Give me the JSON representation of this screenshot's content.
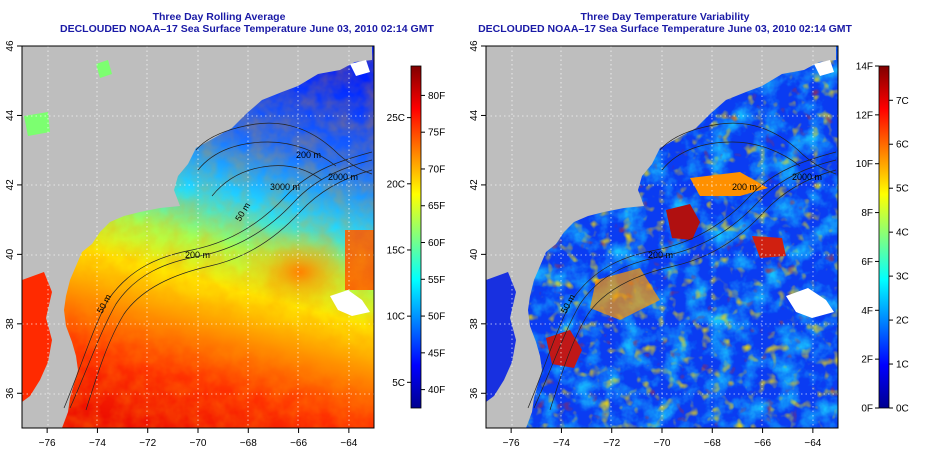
{
  "panels": [
    {
      "title1": "Three Day Rolling Average",
      "title2": "DECLOUDED NOAA–17 Sea Surface Temperature June 03, 2010 02:14 GMT",
      "colorbar_right": [
        "80F",
        "75F",
        "70F",
        "65F",
        "60F",
        "55F",
        "50F",
        "45F",
        "40F"
      ],
      "colorbar_left": [
        "25C",
        "20C",
        "15C",
        "10C",
        "5C"
      ],
      "contour_labels": [
        "200 m",
        "2000 m",
        "3000 m",
        "50 m",
        "200 m",
        "50 m"
      ]
    },
    {
      "title1": "Three Day Temperature Variability",
      "title2": "DECLOUDED NOAA–17 Sea Surface Temperature June 03, 2010 02:14 GMT",
      "colorbar_left": [
        "14F",
        "12F",
        "10F",
        "8F",
        "6F",
        "4F",
        "2F",
        "0F"
      ],
      "colorbar_right": [
        "7C",
        "6C",
        "5C",
        "4C",
        "3C",
        "2C",
        "1C",
        "0C"
      ],
      "contour_labels": [
        "200 m",
        "2000 m",
        "200 m",
        "50 m"
      ]
    }
  ],
  "axes": {
    "x_ticks": [
      "−76",
      "−74",
      "−72",
      "−70",
      "−68",
      "−66",
      "−64"
    ],
    "y_ticks": [
      "46",
      "44",
      "42",
      "40",
      "38",
      "36"
    ],
    "xlim": [
      -77,
      -63
    ],
    "ylim": [
      35,
      46
    ]
  },
  "colors": {
    "land": "#bebebe",
    "title": "#1a1aa6",
    "jet": [
      "#00008f",
      "#0000ff",
      "#0080ff",
      "#00ffff",
      "#80ff80",
      "#ffff00",
      "#ff8000",
      "#ff0000",
      "#800000"
    ]
  }
}
